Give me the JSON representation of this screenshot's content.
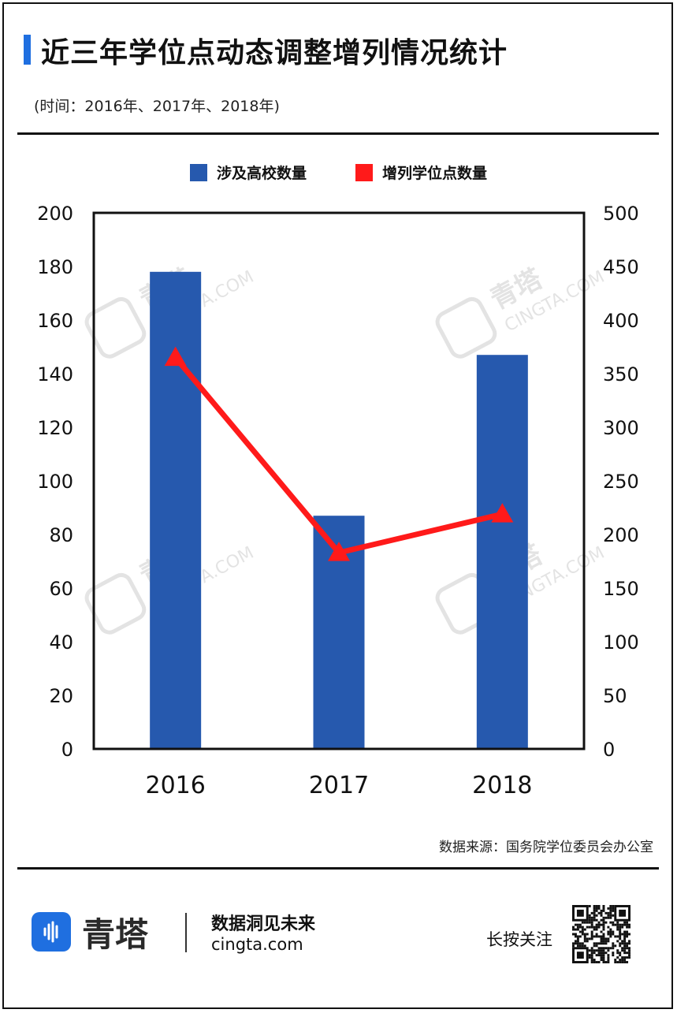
{
  "header": {
    "title": "近三年学位点动态调整增列情况统计",
    "subtitle": "(时间：2016年、2017年、2018年)"
  },
  "colors": {
    "accent": "#1f6fe0",
    "bar": "#2659ae",
    "line": "#ff1a1a",
    "text": "#111111"
  },
  "chart_data": {
    "type": "bar",
    "categories": [
      "2016",
      "2017",
      "2018"
    ],
    "series": [
      {
        "name": "涉及高校数量",
        "type": "bar",
        "axis": "left",
        "values": [
          178,
          87,
          147
        ]
      },
      {
        "name": "增列学位点数量",
        "type": "line",
        "axis": "right",
        "values": [
          365,
          183,
          219
        ]
      }
    ],
    "yleft": {
      "lim": [
        0,
        200
      ],
      "ticks": [
        "0",
        "20",
        "40",
        "60",
        "80",
        "100",
        "120",
        "140",
        "160",
        "180",
        "200"
      ]
    },
    "yright": {
      "lim": [
        0,
        500
      ],
      "ticks": [
        "0",
        "50",
        "100",
        "150",
        "200",
        "250",
        "300",
        "350",
        "400",
        "450",
        "500"
      ]
    },
    "legend_position": "top-center",
    "grid": false
  },
  "legend": {
    "bar_label": "涉及高校数量",
    "line_label": "增列学位点数量"
  },
  "watermark": {
    "brand": "青塔",
    "domain": "CINGTA.COM"
  },
  "source": "数据来源：国务院学位委员会办公室",
  "footer": {
    "brand": "青塔",
    "slogan": "数据洞见未来",
    "url": "cingta.com",
    "follow": "长按关注",
    "logo_icon": "sound-wave-icon",
    "qr_icon": "qr-code-icon"
  }
}
